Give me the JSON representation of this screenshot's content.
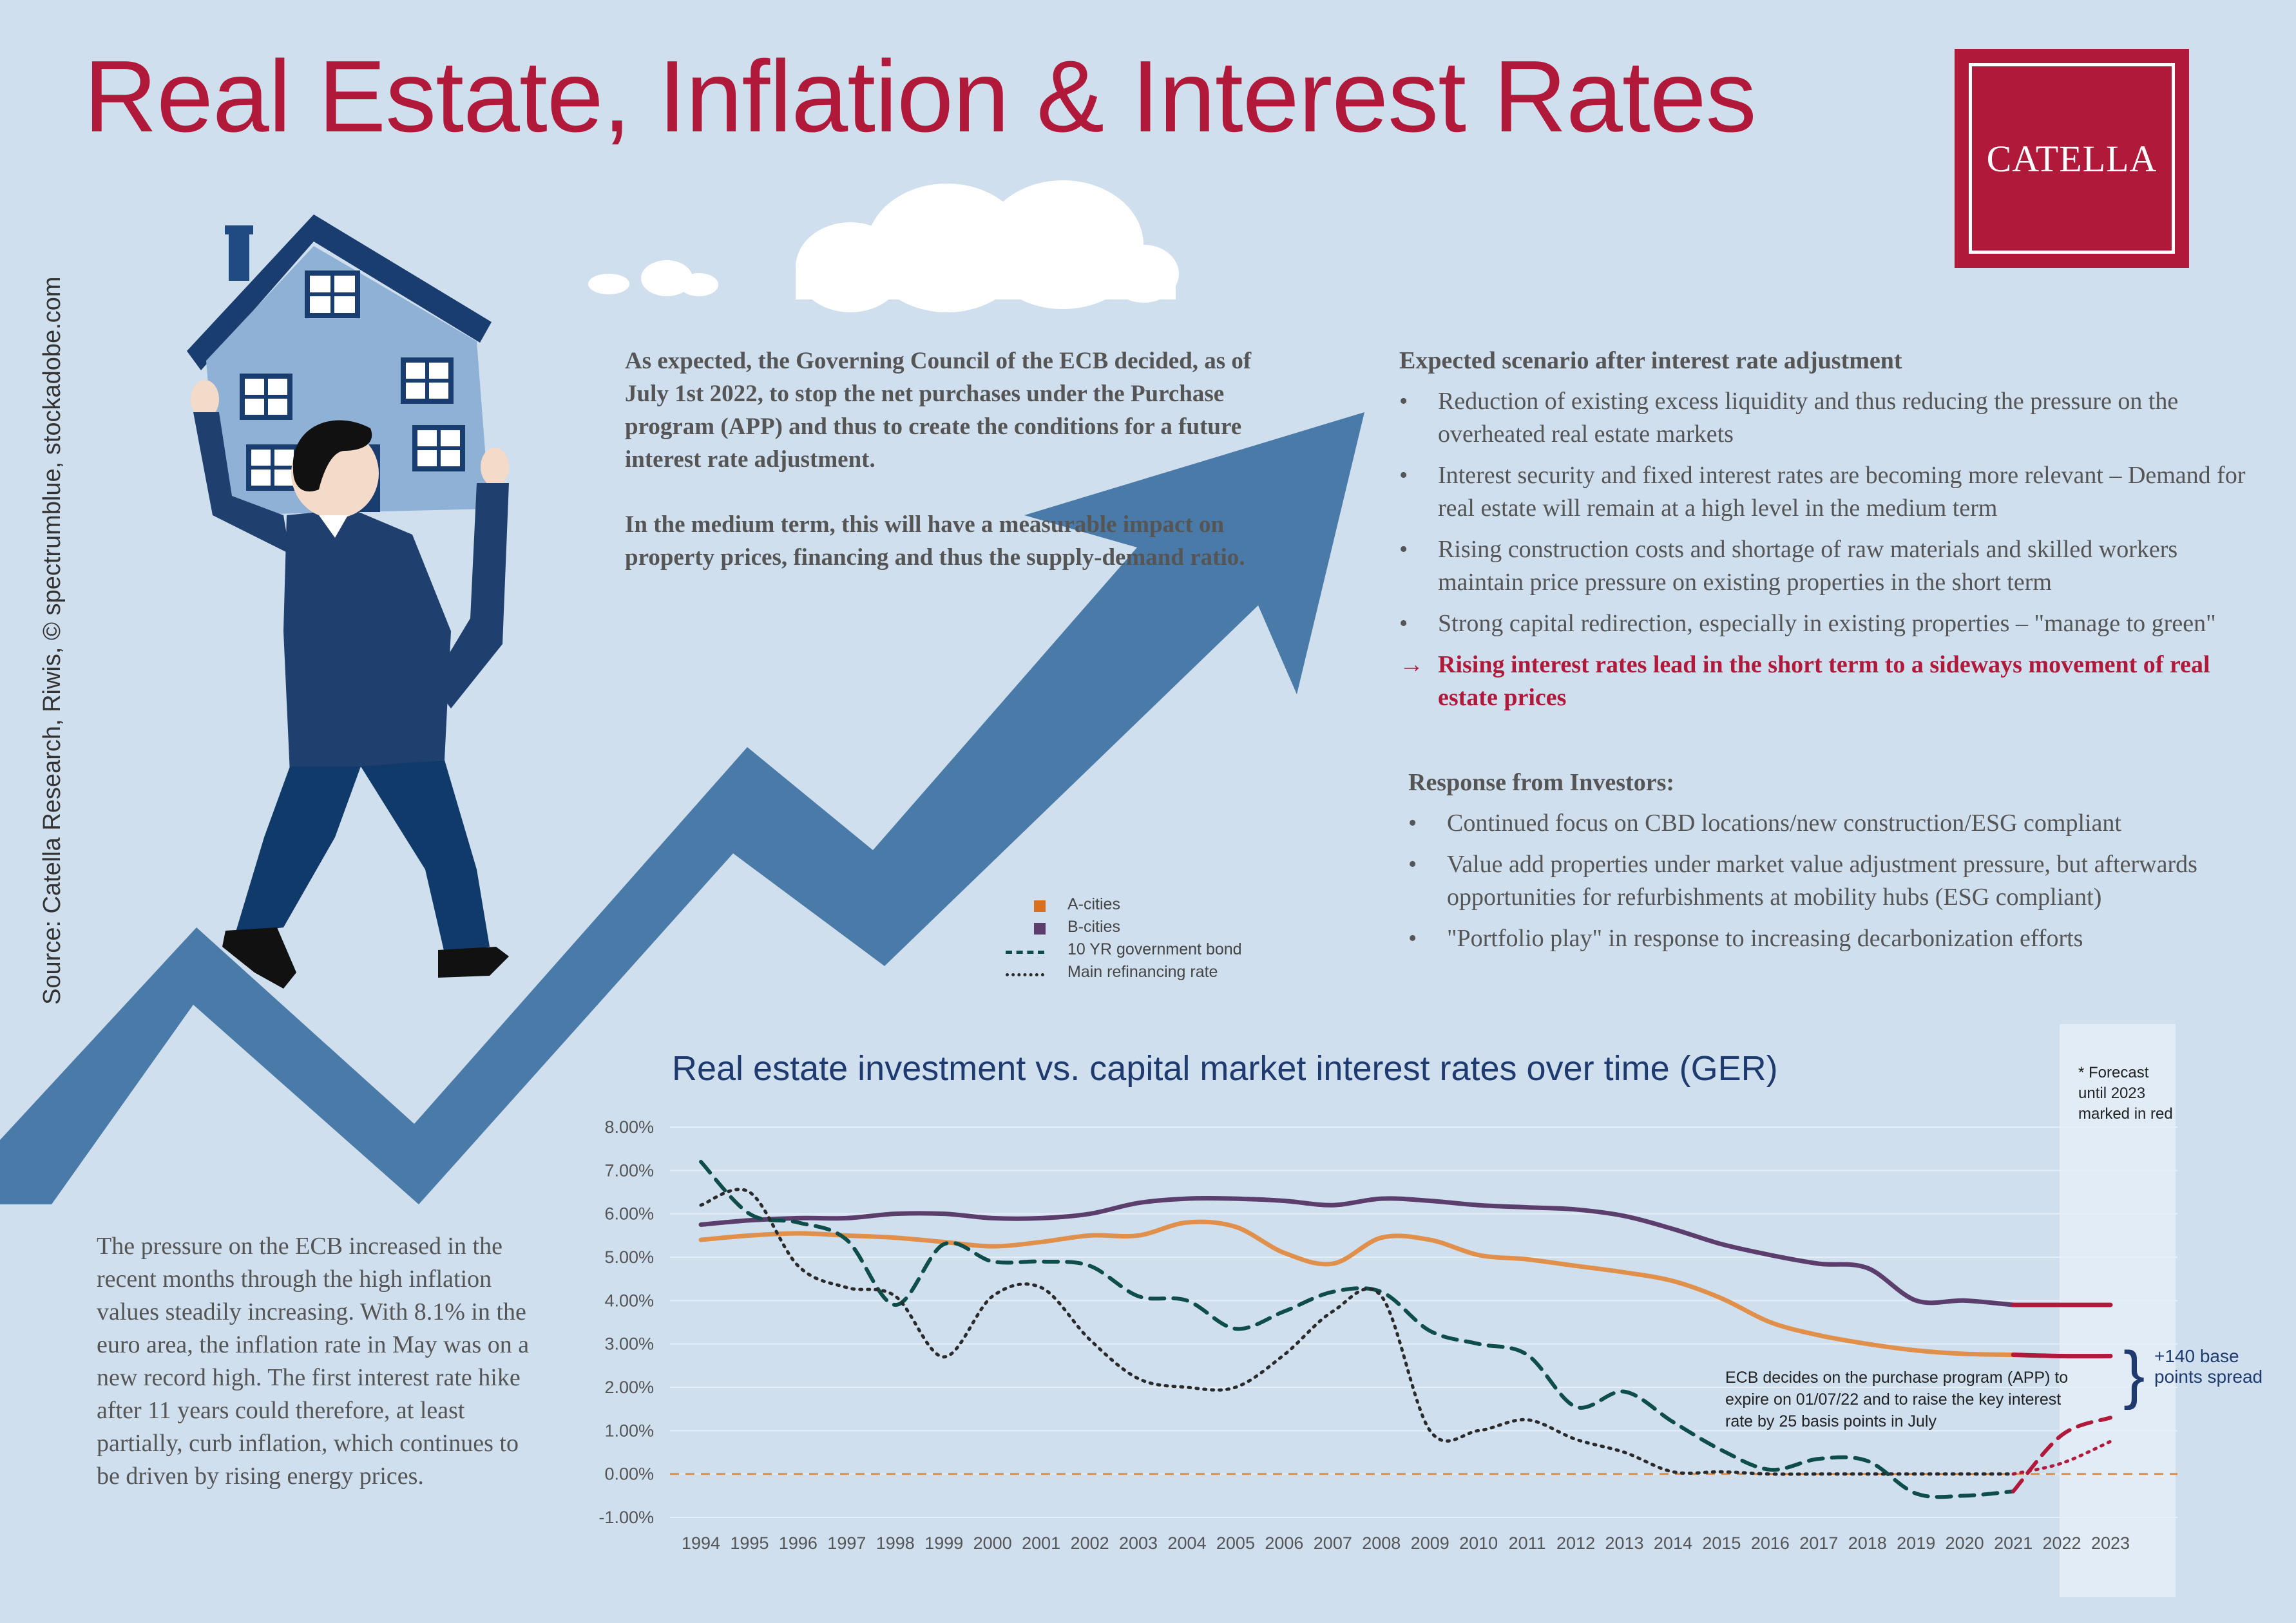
{
  "header": {
    "title": "Real Estate, Inflation & Interest Rates",
    "logo_text": "CATELLA"
  },
  "source": "Source: Catella Research, Riwis, © spectrumblue, stockadobe.com",
  "ecb_text": {
    "p1": "As expected, the Governing Council of the ECB decided, as of July 1st 2022, to stop the net purchases under the Purchase program (APP) and thus to create the conditions for a future interest rate adjustment.",
    "p2": "In the medium term, this will have a measurable impact on property prices, financing and thus the supply-demand ratio."
  },
  "scenario": {
    "heading": "Expected scenario after interest rate adjustment",
    "bullet": "•",
    "items": [
      "Reduction of existing excess liquidity and thus reducing the pressure on the overheated real estate markets",
      "Interest security and fixed interest rates are becoming more relevant – Demand for real estate will remain at a high level in the medium term",
      "Rising construction costs and shortage of raw materials and skilled workers maintain price pressure on existing properties in the short term",
      "Strong capital redirection, especially in existing properties – \"manage to green\""
    ],
    "conclusion_arrow": "→",
    "conclusion": "Rising interest rates lead in the short term to a sideways movement of real estate prices"
  },
  "investors": {
    "heading": "Response from Investors:",
    "items": [
      "Continued focus on CBD locations/new construction/ESG compliant",
      "Value add properties under market value adjustment pressure, but afterwards opportunities for refurbishments at mobility hubs (ESG compliant)",
      "\"Portfolio play\" in response to increasing decarbonization efforts"
    ]
  },
  "pressure_text": "The pressure on the ECB increased in the recent months through the high inflation values steadily increasing. With 8.1% in the euro area, the inflation rate in May was on a new record high. The first interest rate hike after 11 years could therefore, at least partially, curb inflation, which continues to be driven by rising energy prices.",
  "legend": {
    "a": "A-cities",
    "b": "B-cities",
    "bond": "10 YR government bond",
    "refi": "Main refinancing rate"
  },
  "annotations": {
    "forecast_note": "* Forecast until 2023 marked in red",
    "spread_brace": "}",
    "spread": "+140 base points spread",
    "ecb_note": "ECB decides on the purchase program (APP) to expire on 01/07/22 and to raise the key interest rate by 25 basis points in July"
  },
  "colors": {
    "title_red": "#b0193a",
    "a_cities": "#e0904a",
    "b_cities": "#5b3e6c",
    "bond": "#0f4d4a",
    "refi": "#2a2a2a",
    "forecast_red": "#b0193a",
    "arrow_blue": "#4a7aa8"
  },
  "chart_data": {
    "type": "line",
    "title": "Real estate investment vs. capital market interest rates over time (GER)",
    "x": [
      "1994",
      "1995",
      "1996",
      "1997",
      "1998",
      "1999",
      "2000",
      "2001",
      "2002",
      "2003",
      "2004",
      "2005",
      "2006",
      "2007",
      "2008",
      "2009",
      "2010",
      "2011",
      "2012",
      "2013",
      "2014",
      "2015",
      "2016",
      "2017",
      "2018",
      "2019",
      "2020",
      "2021",
      "2022",
      "2023"
    ],
    "ylim": [
      -1,
      8
    ],
    "yticks": [
      "8.00%",
      "7.00%",
      "6.00%",
      "5.00%",
      "4.00%",
      "3.00%",
      "2.00%",
      "1.00%",
      "0.00%",
      "-1.00%"
    ],
    "zero_line": 0,
    "forecast_from": "2022",
    "series": [
      {
        "name": "A-cities",
        "style": "solid",
        "values": [
          5.4,
          5.5,
          5.55,
          5.5,
          5.45,
          5.35,
          5.25,
          5.35,
          5.5,
          5.5,
          5.8,
          5.7,
          5.1,
          4.85,
          5.45,
          5.4,
          5.05,
          4.95,
          4.8,
          4.65,
          4.45,
          4.05,
          3.5,
          3.2,
          3.0,
          2.85,
          2.77,
          2.75,
          2.72,
          2.72
        ]
      },
      {
        "name": "B-cities",
        "style": "solid",
        "values": [
          5.75,
          5.85,
          5.9,
          5.9,
          6.0,
          6.0,
          5.9,
          5.9,
          6.0,
          6.25,
          6.35,
          6.35,
          6.3,
          6.2,
          6.35,
          6.3,
          6.2,
          6.15,
          6.1,
          5.95,
          5.65,
          5.3,
          5.05,
          4.85,
          4.75,
          4.0,
          4.0,
          3.9,
          3.9,
          3.9
        ]
      },
      {
        "name": "10 YR government bond",
        "style": "dashed",
        "values": [
          7.2,
          6.0,
          5.8,
          5.4,
          3.9,
          5.3,
          4.9,
          4.9,
          4.8,
          4.1,
          4.0,
          3.35,
          3.75,
          4.2,
          4.2,
          3.3,
          3.0,
          2.75,
          1.55,
          1.9,
          1.2,
          0.55,
          0.1,
          0.35,
          0.3,
          -0.45,
          -0.5,
          -0.4,
          0.9,
          1.3
        ]
      },
      {
        "name": "Main refinancing rate",
        "style": "dotted",
        "values": [
          6.2,
          6.5,
          4.8,
          4.3,
          4.1,
          2.7,
          4.1,
          4.3,
          3.1,
          2.2,
          2.0,
          2.0,
          2.75,
          3.75,
          4.1,
          1.0,
          1.0,
          1.25,
          0.8,
          0.5,
          0.05,
          0.05,
          0.0,
          0.0,
          0.0,
          0.0,
          0.0,
          0.0,
          0.25,
          0.75
        ]
      }
    ]
  }
}
